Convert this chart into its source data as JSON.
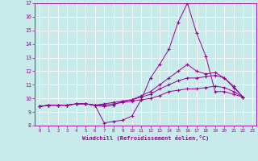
{
  "xlabel": "Windchill (Refroidissement éolien,°C)",
  "bg_color": "#c8eaea",
  "grid_color": "#ffffff",
  "line_color": "#990099",
  "xlim": [
    -0.5,
    23.5
  ],
  "ylim": [
    8,
    17
  ],
  "xticks": [
    0,
    1,
    2,
    3,
    4,
    5,
    6,
    7,
    8,
    9,
    10,
    11,
    12,
    13,
    14,
    15,
    16,
    17,
    18,
    19,
    20,
    21,
    22,
    23
  ],
  "yticks": [
    8,
    9,
    10,
    11,
    12,
    13,
    14,
    15,
    16,
    17
  ],
  "series": [
    [
      9.4,
      9.5,
      9.5,
      9.5,
      9.6,
      9.6,
      9.5,
      8.2,
      8.3,
      8.4,
      8.7,
      9.9,
      11.5,
      12.5,
      13.6,
      15.6,
      17.0,
      14.8,
      13.1,
      10.5,
      10.5,
      10.3,
      10.1
    ],
    [
      9.4,
      9.5,
      9.5,
      9.5,
      9.6,
      9.6,
      9.5,
      9.4,
      9.5,
      9.8,
      9.9,
      10.2,
      10.5,
      11.0,
      11.5,
      12.0,
      12.5,
      12.0,
      11.8,
      11.9,
      11.5,
      10.8,
      10.1
    ],
    [
      9.4,
      9.5,
      9.5,
      9.5,
      9.6,
      9.6,
      9.5,
      9.5,
      9.6,
      9.7,
      9.8,
      9.9,
      10.0,
      10.2,
      10.5,
      10.6,
      10.7,
      10.7,
      10.8,
      10.9,
      10.8,
      10.5,
      10.1
    ],
    [
      9.4,
      9.5,
      9.5,
      9.5,
      9.6,
      9.6,
      9.5,
      9.6,
      9.7,
      9.8,
      9.9,
      10.1,
      10.3,
      10.7,
      11.0,
      11.3,
      11.5,
      11.5,
      11.6,
      11.7,
      11.5,
      10.9,
      10.1
    ]
  ]
}
